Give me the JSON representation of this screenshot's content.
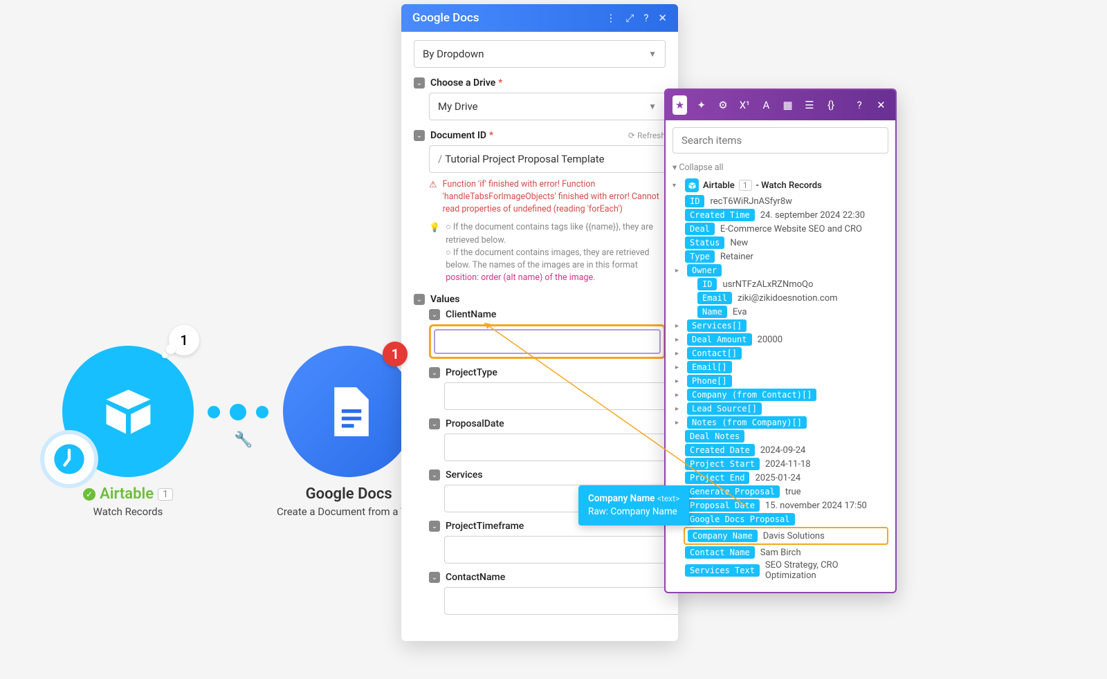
{
  "canvas": {
    "airtable": {
      "title": "Airtable",
      "subtitle": "Watch Records",
      "count": "1",
      "bubble": "1"
    },
    "gdocs": {
      "title": "Google Docs",
      "subtitle": "Create a Document from a Tem",
      "badge": "1"
    }
  },
  "panel": {
    "title": "Google Docs",
    "byDropdown": "By Dropdown",
    "chooseDrive": {
      "label": "Choose a Drive",
      "value": "My Drive"
    },
    "documentId": {
      "label": "Document ID",
      "refresh": "Refresh",
      "value": "Tutorial Project Proposal Template"
    },
    "error": "Function 'if' finished with error! Function 'handleTabsForImageObjects' finished with error! Cannot read properties of undefined (reading 'forEach')",
    "tip1a": "○ If the document contains tags like {{name}}, they are retrieved below.",
    "tip1b": "○ If the document contains images, they are retrieved below. The names of the images are in this format ",
    "tip1pink": "position: order (alt name) of the image",
    "valuesLabel": "Values",
    "fields": {
      "clientName": "ClientName",
      "projectType": "ProjectType",
      "proposalDate": "ProposalDate",
      "services": "Services",
      "projectTimeframe": "ProjectTimeframe",
      "contactName": "ContactName"
    }
  },
  "picker": {
    "searchPlaceholder": "Search items",
    "collapseAll": "Collapse all",
    "module": {
      "name": "Airtable",
      "idx": "1",
      "suffix": "- Watch Records"
    },
    "rows": [
      {
        "k": "ID",
        "v": "recT6WiRJnASfyr8w"
      },
      {
        "k": "Created Time",
        "v": "24. september 2024 22:30"
      },
      {
        "k": "Deal",
        "v": "E-Commerce Website SEO and CRO"
      },
      {
        "k": "Status",
        "v": "New"
      },
      {
        "k": "Type",
        "v": "Retainer"
      }
    ],
    "owner": {
      "label": "Owner",
      "rows": [
        {
          "k": "ID",
          "v": "usrNTFzALxRZNmoQo"
        },
        {
          "k": "Email",
          "v": "ziki@zikidoesnotion.com"
        },
        {
          "k": "Name",
          "v": "Eva"
        }
      ]
    },
    "arrays": [
      "Services[]",
      "Deal Amount",
      "Contact[]",
      "Email[]",
      "Phone[]",
      "Company (from Contact)[]",
      "Lead Source[]",
      "Notes (from Company)[]"
    ],
    "dealAmountVal": "20000",
    "tail": [
      {
        "k": "Deal Notes",
        "v": ""
      },
      {
        "k": "Created Date",
        "v": "2024-09-24"
      },
      {
        "k": "Project Start",
        "v": "2024-11-18"
      },
      {
        "k": "Project End",
        "v": "2025-01-24"
      },
      {
        "k": "Generate Proposal",
        "v": "true"
      },
      {
        "k": "Proposal Date",
        "v": "15. november 2024 17:50"
      },
      {
        "k": "Google Docs Proposal",
        "v": ""
      },
      {
        "k": "Company Name",
        "v": "Davis Solutions",
        "hl": true
      },
      {
        "k": "Contact Name",
        "v": "Sam Birch"
      },
      {
        "k": "Services Text",
        "v": "SEO Strategy, CRO Optimization"
      }
    ]
  },
  "dragTip": {
    "line1": "Company Name",
    "meta": "<text>",
    "line2": "Raw: Company Name"
  },
  "colors": {
    "airtable": "#18bfff",
    "purple": "#8e44ad",
    "orange": "#f5a623",
    "red": "#e53935"
  }
}
